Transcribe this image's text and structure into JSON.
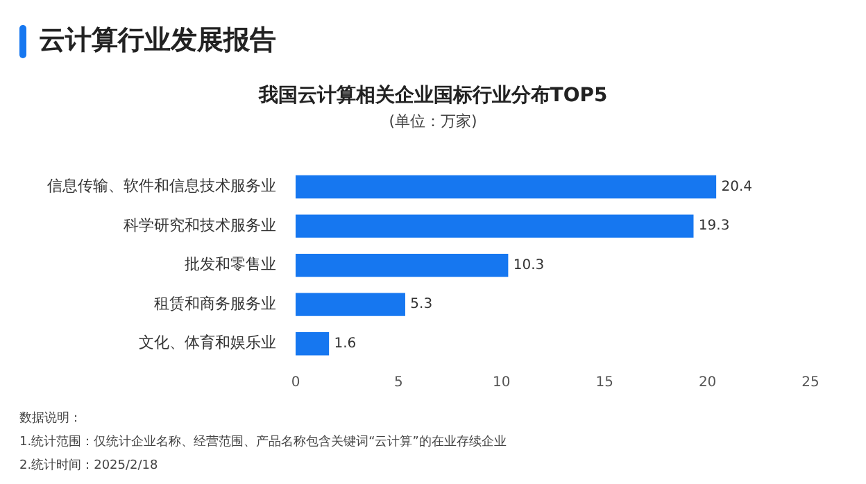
{
  "chart_data": {
    "type": "bar",
    "orientation": "horizontal",
    "title": "我国云计算相关企业国标行业分布TOP5",
    "subtitle": "(单位：万家)",
    "categories": [
      "信息传输、软件和信息技术服务业",
      "科学研究和技术服务业",
      "批发和零售业",
      "租赁和商务服务业",
      "文化、体育和娱乐业"
    ],
    "values": [
      20.4,
      19.3,
      10.3,
      5.3,
      1.6
    ],
    "color": "#1677f0",
    "xlim": [
      0,
      25
    ],
    "xticks": [
      0,
      5,
      10,
      15,
      20,
      25
    ],
    "data_labels": true,
    "annotations": [
      "云计算行业发展报告",
      "数据说明：",
      "1.统计范围：仅统计企业名称、经营范围、产品名称包含关键词“云计算”的在业存续企业",
      "2.统计时间：2025/2/18"
    ]
  }
}
